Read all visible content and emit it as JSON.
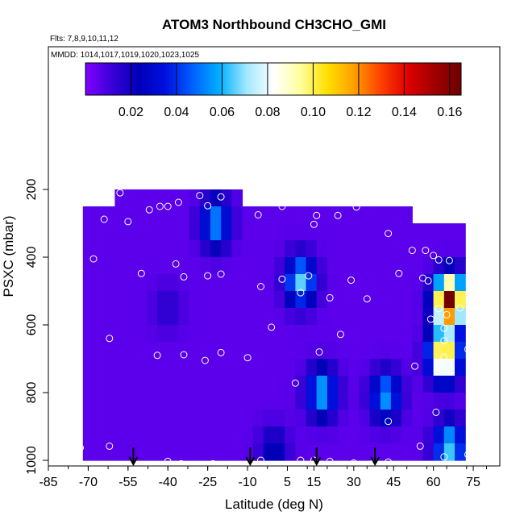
{
  "chart_data": {
    "type": "heatmap",
    "title": "ATOM3 Northbound CH3CHO_GMI",
    "flights_label": "Flts: 7,8,9,10,11,12",
    "dates_label": "MMDD: 1014,1017,1019,1020,1023,1025",
    "xlabel": "Latitude (deg N)",
    "ylabel": "PSXC (mbar)",
    "xlim": [
      -85,
      85
    ],
    "ylim": [
      1000,
      0
    ],
    "x_ticks": [
      -85,
      -70,
      -55,
      -40,
      -25,
      -10,
      5,
      15,
      30,
      45,
      60,
      75
    ],
    "x_tick_labels": [
      "-85",
      "-70",
      "-55",
      "-40",
      "-25",
      "-10",
      "5",
      "15",
      "30",
      "45",
      "60",
      "75"
    ],
    "y_ticks": [
      200,
      400,
      600,
      800,
      1000
    ],
    "y_tick_labels": [
      "200",
      "400",
      "600",
      "800",
      "1000"
    ],
    "colorbar": {
      "min": 0.0,
      "max": 0.165,
      "ticks": [
        0.02,
        0.04,
        0.06,
        0.08,
        0.1,
        0.12,
        0.14,
        0.16
      ],
      "tick_labels": [
        "0.02",
        "0.04",
        "0.06",
        "0.08",
        "0.10",
        "0.12",
        "0.14",
        "0.16"
      ],
      "colors": [
        "#7f00ff",
        "#3a00d8",
        "#0000b8",
        "#0010e0",
        "#0060ff",
        "#00b0ff",
        "#a0e8ff",
        "#ffffff",
        "#ffffa0",
        "#ffe000",
        "#ffa000",
        "#ff4000",
        "#e00000",
        "#a00000",
        "#700000"
      ]
    },
    "profile_arrows_lat": [
      -53,
      -9,
      16,
      38
    ],
    "latitude_bins": [
      -72,
      -68,
      -64,
      -60,
      -56,
      -52,
      -48,
      -44,
      -40,
      -36,
      -32,
      -28,
      -24,
      -20,
      -16,
      -12,
      -8,
      -4,
      0,
      4,
      8,
      12,
      16,
      20,
      24,
      28,
      32,
      36,
      40,
      44,
      48,
      52,
      56,
      60,
      64,
      68,
      72
    ],
    "pressure_bins": [
      150,
      200,
      250,
      300,
      350,
      400,
      450,
      500,
      550,
      600,
      650,
      700,
      750,
      800,
      850,
      900,
      950,
      1000
    ],
    "features": [
      {
        "lat": -40,
        "p": 550,
        "value": 0.01
      },
      {
        "lat": -22,
        "p": 300,
        "value": 0.05
      },
      {
        "lat": 10,
        "p": 470,
        "value": 0.06
      },
      {
        "lat": 18,
        "p": 800,
        "value": 0.055
      },
      {
        "lat": 42,
        "p": 810,
        "value": 0.05
      },
      {
        "lat": 66,
        "p": 530,
        "value": 0.16
      },
      {
        "lat": 64,
        "p": 690,
        "value": 0.11
      },
      {
        "lat": 66,
        "p": 960,
        "value": 0.06
      },
      {
        "lat": 0,
        "p": 970,
        "value": 0.02
      }
    ],
    "observation_points": [
      {
        "lat": -70,
        "p": 210
      },
      {
        "lat": -80,
        "p": 240
      },
      {
        "lat": -58,
        "p": 210
      },
      {
        "lat": -47,
        "p": 260
      },
      {
        "lat": -43,
        "p": 250
      },
      {
        "lat": -55,
        "p": 295
      },
      {
        "lat": -64,
        "p": 288
      },
      {
        "lat": -36,
        "p": 238
      },
      {
        "lat": -28,
        "p": 218
      },
      {
        "lat": -20,
        "p": 222
      },
      {
        "lat": -10,
        "p": 198
      },
      {
        "lat": -40,
        "p": 250
      },
      {
        "lat": -25,
        "p": 248
      },
      {
        "lat": -6,
        "p": 275
      },
      {
        "lat": 3,
        "p": 250
      },
      {
        "lat": 16,
        "p": 277
      },
      {
        "lat": 24,
        "p": 277
      },
      {
        "lat": 15,
        "p": 303
      },
      {
        "lat": 31,
        "p": 252
      },
      {
        "lat": 43,
        "p": 330
      },
      {
        "lat": -82,
        "p": 293
      },
      {
        "lat": -80,
        "p": 330
      },
      {
        "lat": -68,
        "p": 405
      },
      {
        "lat": -78,
        "p": 405
      },
      {
        "lat": -50,
        "p": 448
      },
      {
        "lat": -37,
        "p": 420
      },
      {
        "lat": -34,
        "p": 458
      },
      {
        "lat": -25,
        "p": 455
      },
      {
        "lat": -20,
        "p": 450
      },
      {
        "lat": -5,
        "p": 487
      },
      {
        "lat": 3,
        "p": 465
      },
      {
        "lat": 10,
        "p": 505
      },
      {
        "lat": 13,
        "p": 455
      },
      {
        "lat": 21,
        "p": 520
      },
      {
        "lat": 29,
        "p": 468
      },
      {
        "lat": 35,
        "p": 523
      },
      {
        "lat": 47,
        "p": 448
      },
      {
        "lat": 52,
        "p": 380
      },
      {
        "lat": 57,
        "p": 380
      },
      {
        "lat": 62,
        "p": 408
      },
      {
        "lat": 66,
        "p": 410
      },
      {
        "lat": 60,
        "p": 395
      },
      {
        "lat": 56,
        "p": 462
      },
      {
        "lat": 58,
        "p": 470
      },
      {
        "lat": 62,
        "p": 552
      },
      {
        "lat": 65,
        "p": 570
      },
      {
        "lat": 70,
        "p": 550
      },
      {
        "lat": 59,
        "p": 583
      },
      {
        "lat": 64,
        "p": 610
      },
      {
        "lat": -74,
        "p": 622
      },
      {
        "lat": -62,
        "p": 640
      },
      {
        "lat": -1,
        "p": 607
      },
      {
        "lat": 25,
        "p": 628
      },
      {
        "lat": 64,
        "p": 647
      },
      {
        "lat": 73,
        "p": 672
      },
      {
        "lat": 64,
        "p": 695
      },
      {
        "lat": 53,
        "p": 722
      },
      {
        "lat": -44,
        "p": 690
      },
      {
        "lat": -34,
        "p": 688
      },
      {
        "lat": -26,
        "p": 705
      },
      {
        "lat": -20,
        "p": 682
      },
      {
        "lat": -10,
        "p": 697
      },
      {
        "lat": 17,
        "p": 680
      },
      {
        "lat": 8,
        "p": 772
      },
      {
        "lat": 61,
        "p": 858
      },
      {
        "lat": 43,
        "p": 885
      },
      {
        "lat": -78,
        "p": 963
      },
      {
        "lat": -73,
        "p": 963
      },
      {
        "lat": -62,
        "p": 958
      },
      {
        "lat": 55,
        "p": 958
      },
      {
        "lat": 64,
        "p": 990
      },
      {
        "lat": 73,
        "p": 983
      },
      {
        "lat": -40,
        "p": 1003
      },
      {
        "lat": -35,
        "p": 1010
      },
      {
        "lat": -23,
        "p": 1010
      },
      {
        "lat": -5,
        "p": 1000
      },
      {
        "lat": 10,
        "p": 1000
      },
      {
        "lat": 15,
        "p": 1000
      },
      {
        "lat": 21,
        "p": 1003
      },
      {
        "lat": 30,
        "p": 1008
      },
      {
        "lat": 37,
        "p": 1010
      },
      {
        "lat": 43,
        "p": 1005
      }
    ]
  }
}
